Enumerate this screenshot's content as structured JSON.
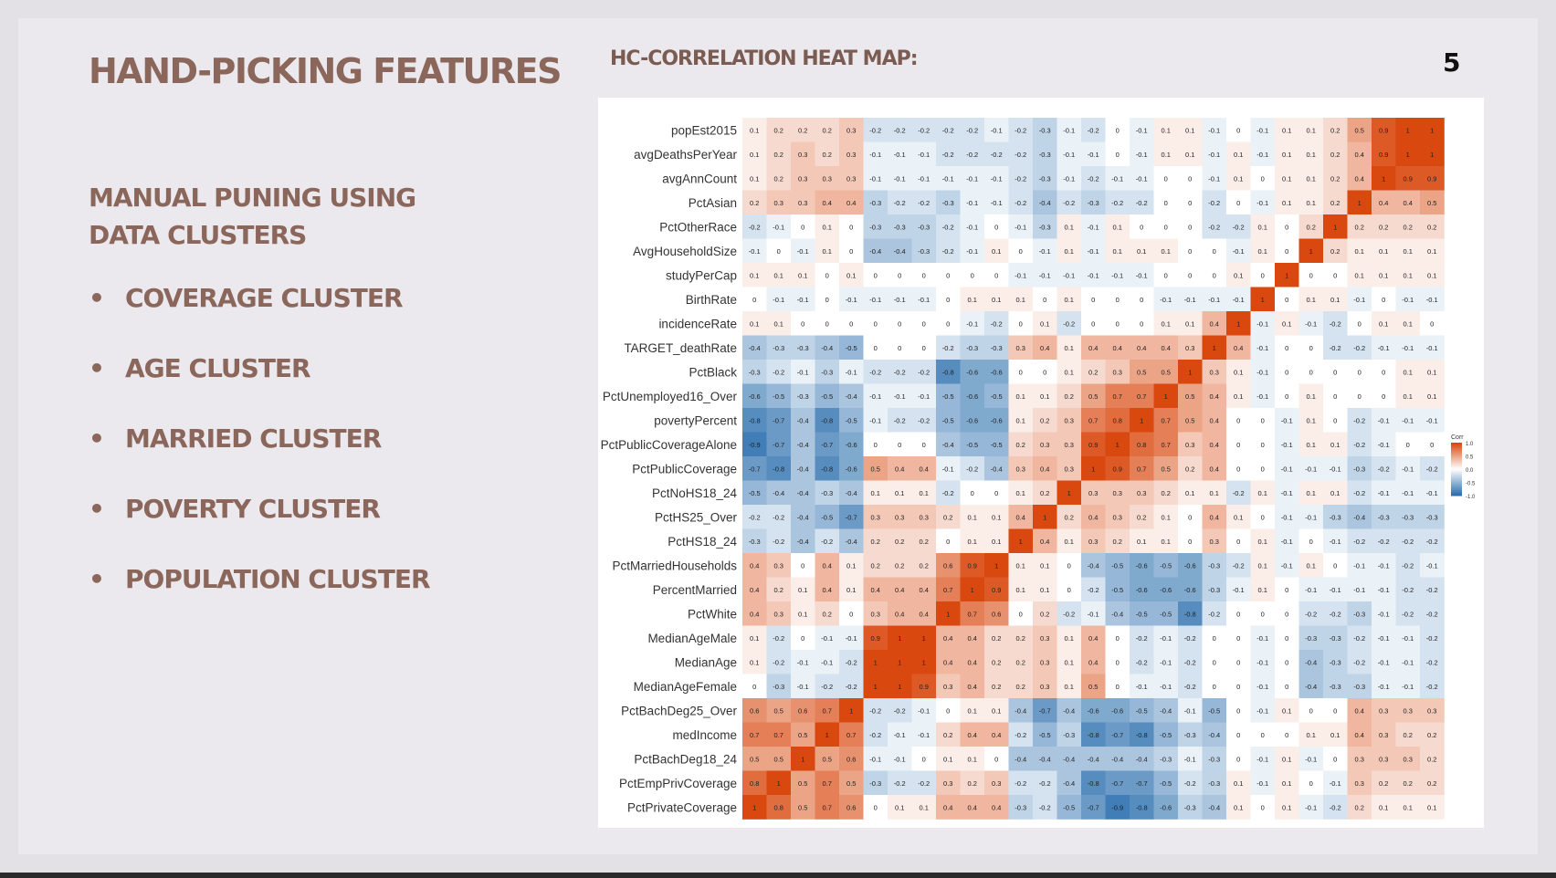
{
  "slide": {
    "title": "HAND-PICKING FEATURES",
    "heatmap_title": "HC-CORRELATION HEAT MAP:",
    "page_number": "5",
    "subtitle": "MANUAL PUNING USING DATA CLUSTERS",
    "bullet_char": "•",
    "clusters": [
      "COVERAGE CLUSTER",
      "AGE CLUSTER",
      "MARRIED CLUSTER",
      "POVERTY CLUSTER",
      "POPULATION CLUSTER"
    ]
  },
  "chart_data": {
    "type": "heatmap",
    "variables": [
      "popEst2015",
      "avgDeathsPerYear",
      "avgAnnCount",
      "PctAsian",
      "PctOtherRace",
      "AvgHouseholdSize",
      "studyPerCap",
      "BirthRate",
      "incidenceRate",
      "TARGET_deathRate",
      "PctBlack",
      "PctUnemployed16_Over",
      "povertyPercent",
      "PctPublicCoverageAlone",
      "PctPublicCoverage",
      "PctNoHS18_24",
      "PctHS25_Over",
      "PctHS18_24",
      "PctMarriedHouseholds",
      "PercentMarried",
      "PctWhite",
      "MedianAgeMale",
      "MedianAge",
      "MedianAgeFemale",
      "PctBachDeg25_Over",
      "medIncome",
      "PctBachDeg18_24",
      "PctEmpPrivCoverage",
      "PctPrivateCoverage"
    ],
    "values": [
      [
        0.1,
        0.2,
        0.2,
        0.2,
        0.3,
        -0.2,
        -0.2,
        -0.2,
        -0.2,
        -0.2,
        -0.1,
        -0.2,
        -0.3,
        -0.1,
        -0.2,
        0,
        -0.1,
        0.1,
        0.1,
        -0.1,
        0,
        -0.1,
        0.1,
        0.1,
        0.2,
        0.5,
        0.9,
        1,
        1
      ],
      [
        0.1,
        0.2,
        0.3,
        0.2,
        0.3,
        -0.1,
        -0.1,
        -0.1,
        -0.2,
        -0.2,
        -0.2,
        -0.2,
        -0.3,
        -0.1,
        -0.1,
        0,
        -0.1,
        0.1,
        0.1,
        -0.1,
        0.1,
        -0.1,
        0.1,
        0.1,
        0.2,
        0.4,
        0.9,
        1,
        1
      ],
      [
        0.1,
        0.2,
        0.3,
        0.3,
        0.3,
        -0.1,
        -0.1,
        -0.1,
        -0.1,
        -0.1,
        -0.1,
        -0.2,
        -0.3,
        -0.1,
        -0.2,
        -0.1,
        -0.1,
        0,
        0,
        -0.1,
        0.1,
        0,
        0.1,
        0.1,
        0.2,
        0.4,
        1,
        0.9,
        0.9
      ],
      [
        0.2,
        0.3,
        0.3,
        0.4,
        0.4,
        -0.3,
        -0.2,
        -0.2,
        -0.3,
        -0.1,
        -0.1,
        -0.2,
        -0.4,
        -0.2,
        -0.3,
        -0.2,
        -0.2,
        0,
        0,
        -0.2,
        0,
        -0.1,
        0.1,
        0.1,
        0.2,
        1,
        0.4,
        0.4,
        0.5
      ],
      [
        -0.2,
        -0.1,
        0,
        0.1,
        0,
        -0.3,
        -0.3,
        -0.3,
        -0.2,
        -0.1,
        0,
        -0.1,
        -0.3,
        0.1,
        -0.1,
        0.1,
        0,
        0,
        0,
        -0.2,
        -0.2,
        0.1,
        0,
        0.2,
        1,
        0.2,
        0.2,
        0.2,
        0.2
      ],
      [
        -0.1,
        0,
        -0.1,
        0.1,
        0,
        -0.4,
        -0.4,
        -0.3,
        -0.2,
        -0.1,
        0.1,
        0,
        -0.1,
        0.1,
        -0.1,
        0.1,
        0.1,
        0.1,
        0,
        0,
        -0.1,
        0.1,
        0,
        1,
        0.2,
        0.1,
        0.1,
        0.1,
        0.1
      ],
      [
        0.1,
        0.1,
        0.1,
        0,
        0.1,
        0,
        0,
        0,
        0,
        0,
        0,
        -0.1,
        -0.1,
        -0.1,
        -0.1,
        -0.1,
        -0.1,
        0,
        0,
        0,
        0.1,
        0,
        1,
        0,
        0,
        0.1,
        0.1,
        0.1,
        0.1
      ],
      [
        0,
        -0.1,
        -0.1,
        0,
        -0.1,
        -0.1,
        -0.1,
        -0.1,
        0,
        0.1,
        0.1,
        0.1,
        0,
        0.1,
        0,
        0,
        0,
        -0.1,
        -0.1,
        -0.1,
        -0.1,
        1,
        0,
        0.1,
        0.1,
        -0.1,
        0,
        -0.1,
        -0.1
      ],
      [
        0.1,
        0.1,
        0,
        0,
        0,
        0,
        0,
        0,
        0,
        -0.1,
        -0.2,
        0,
        0.1,
        -0.2,
        0,
        0,
        0,
        0.1,
        0.1,
        0.4,
        1,
        -0.1,
        0.1,
        -0.1,
        -0.2,
        0,
        0.1,
        0.1,
        0
      ],
      [
        -0.4,
        -0.3,
        -0.3,
        -0.4,
        -0.5,
        0,
        0,
        0,
        -0.2,
        -0.3,
        -0.3,
        0.3,
        0.4,
        0.1,
        0.4,
        0.4,
        0.4,
        0.4,
        0.3,
        1,
        0.4,
        -0.1,
        0,
        0,
        -0.2,
        -0.2,
        -0.1,
        -0.1,
        -0.1
      ],
      [
        -0.3,
        -0.2,
        -0.1,
        -0.3,
        -0.1,
        -0.2,
        -0.2,
        -0.2,
        -0.8,
        -0.6,
        -0.6,
        0,
        0,
        0.1,
        0.2,
        0.3,
        0.5,
        0.5,
        1,
        0.3,
        0.1,
        -0.1,
        0,
        0,
        0,
        0,
        0,
        0.1,
        0.1
      ],
      [
        -0.6,
        -0.5,
        -0.3,
        -0.5,
        -0.4,
        -0.1,
        -0.1,
        -0.1,
        -0.5,
        -0.6,
        -0.5,
        0.1,
        0.1,
        0.2,
        0.5,
        0.7,
        0.7,
        1,
        0.5,
        0.4,
        0.1,
        -0.1,
        0,
        0.1,
        0,
        0,
        0,
        0.1,
        0.1
      ],
      [
        -0.8,
        -0.7,
        -0.4,
        -0.8,
        -0.5,
        -0.1,
        -0.2,
        -0.2,
        -0.5,
        -0.6,
        -0.6,
        0.1,
        0.2,
        0.3,
        0.7,
        0.8,
        1,
        0.7,
        0.5,
        0.4,
        0,
        0,
        -0.1,
        0.1,
        0,
        -0.2,
        -0.1,
        -0.1,
        -0.1
      ],
      [
        -0.9,
        -0.7,
        -0.4,
        -0.7,
        -0.6,
        0,
        0,
        0,
        -0.4,
        -0.5,
        -0.5,
        0.2,
        0.3,
        0.3,
        0.9,
        1,
        0.8,
        0.7,
        0.3,
        0.4,
        0,
        0,
        -0.1,
        0.1,
        0.1,
        -0.2,
        -0.1,
        0,
        0
      ],
      [
        -0.7,
        -0.8,
        -0.4,
        -0.8,
        -0.6,
        0.5,
        0.4,
        0.4,
        -0.1,
        -0.2,
        -0.4,
        0.3,
        0.4,
        0.3,
        1,
        0.9,
        0.7,
        0.5,
        0.2,
        0.4,
        0,
        0,
        -0.1,
        -0.1,
        -0.1,
        -0.3,
        -0.2,
        -0.1,
        -0.2
      ],
      [
        -0.5,
        -0.4,
        -0.4,
        -0.3,
        -0.4,
        0.1,
        0.1,
        0.1,
        -0.2,
        0,
        0,
        0.1,
        0.2,
        1,
        0.3,
        0.3,
        0.3,
        0.2,
        0.1,
        0.1,
        -0.2,
        0.1,
        -0.1,
        0.1,
        0.1,
        -0.2,
        -0.1,
        -0.1,
        -0.1
      ],
      [
        -0.2,
        -0.2,
        -0.4,
        -0.5,
        -0.7,
        0.3,
        0.3,
        0.3,
        0.2,
        0.1,
        0.1,
        0.4,
        1,
        0.2,
        0.4,
        0.3,
        0.2,
        0.1,
        0,
        0.4,
        0.1,
        0,
        -0.1,
        -0.1,
        -0.3,
        -0.4,
        -0.3,
        -0.3,
        -0.3
      ],
      [
        -0.3,
        -0.2,
        -0.4,
        -0.2,
        -0.4,
        0.2,
        0.2,
        0.2,
        0,
        0.1,
        0.1,
        1,
        0.4,
        0.1,
        0.3,
        0.2,
        0.1,
        0.1,
        0,
        0.3,
        0,
        0.1,
        -0.1,
        0,
        -0.1,
        -0.2,
        -0.2,
        -0.2,
        -0.2
      ],
      [
        0.4,
        0.3,
        0,
        0.4,
        0.1,
        0.2,
        0.2,
        0.2,
        0.6,
        0.9,
        1,
        0.1,
        0.1,
        0,
        -0.4,
        -0.5,
        -0.6,
        -0.5,
        -0.6,
        -0.3,
        -0.2,
        0.1,
        -0.1,
        0.1,
        0,
        -0.1,
        -0.1,
        -0.2,
        -0.1
      ],
      [
        0.4,
        0.2,
        0.1,
        0.4,
        0.1,
        0.4,
        0.4,
        0.4,
        0.7,
        1,
        0.9,
        0.1,
        0.1,
        0,
        -0.2,
        -0.5,
        -0.6,
        -0.6,
        -0.6,
        -0.3,
        -0.1,
        0.1,
        0,
        -0.1,
        -0.1,
        -0.1,
        -0.1,
        -0.2,
        -0.2
      ],
      [
        0.4,
        0.3,
        0.1,
        0.2,
        0,
        0.3,
        0.4,
        0.4,
        1,
        0.7,
        0.6,
        0,
        0.2,
        -0.2,
        -0.1,
        -0.4,
        -0.5,
        -0.5,
        -0.8,
        -0.2,
        0,
        0,
        0,
        -0.2,
        -0.2,
        -0.3,
        -0.1,
        -0.2,
        -0.2
      ],
      [
        0.1,
        -0.2,
        0,
        -0.1,
        -0.1,
        0.9,
        1,
        1,
        0.4,
        0.4,
        0.2,
        0.2,
        0.3,
        0.1,
        0.4,
        0,
        -0.2,
        -0.1,
        -0.2,
        0,
        0,
        -0.1,
        0,
        -0.3,
        -0.3,
        -0.2,
        -0.1,
        -0.1,
        -0.2
      ],
      [
        0.1,
        -0.2,
        -0.1,
        -0.1,
        -0.2,
        1,
        1,
        1,
        0.4,
        0.4,
        0.2,
        0.2,
        0.3,
        0.1,
        0.4,
        0,
        -0.2,
        -0.1,
        -0.2,
        0,
        0,
        -0.1,
        0,
        -0.4,
        -0.3,
        -0.2,
        -0.1,
        -0.1,
        -0.2
      ],
      [
        0,
        -0.3,
        -0.1,
        -0.2,
        -0.2,
        1,
        1,
        0.9,
        0.3,
        0.4,
        0.2,
        0.2,
        0.3,
        0.1,
        0.5,
        0,
        -0.1,
        -0.1,
        -0.2,
        0,
        0,
        -0.1,
        0,
        -0.4,
        -0.3,
        -0.3,
        -0.1,
        -0.1,
        -0.2
      ],
      [
        0.6,
        0.5,
        0.6,
        0.7,
        1,
        -0.2,
        -0.2,
        -0.1,
        0,
        0.1,
        0.1,
        -0.4,
        -0.7,
        -0.4,
        -0.6,
        -0.6,
        -0.5,
        -0.4,
        -0.1,
        -0.5,
        0,
        -0.1,
        0.1,
        0,
        0,
        0.4,
        0.3,
        0.3,
        0.3
      ],
      [
        0.7,
        0.7,
        0.5,
        1,
        0.7,
        -0.2,
        -0.1,
        -0.1,
        0.2,
        0.4,
        0.4,
        -0.2,
        -0.5,
        -0.3,
        -0.8,
        -0.7,
        -0.8,
        -0.5,
        -0.3,
        -0.4,
        0,
        0,
        0,
        0.1,
        0.1,
        0.4,
        0.3,
        0.2,
        0.2
      ],
      [
        0.5,
        0.5,
        1,
        0.5,
        0.6,
        -0.1,
        -0.1,
        0,
        0.1,
        0.1,
        0,
        -0.4,
        -0.4,
        -0.4,
        -0.4,
        -0.4,
        -0.4,
        -0.3,
        -0.1,
        -0.3,
        0,
        -0.1,
        0.1,
        -0.1,
        0,
        0.3,
        0.3,
        0.3,
        0.2
      ],
      [
        0.8,
        1,
        0.5,
        0.7,
        0.5,
        -0.3,
        -0.2,
        -0.2,
        0.3,
        0.2,
        0.3,
        -0.2,
        -0.2,
        -0.4,
        -0.8,
        -0.7,
        -0.7,
        -0.5,
        -0.2,
        -0.3,
        0.1,
        -0.1,
        0.1,
        0,
        -0.1,
        0.3,
        0.2,
        0.2,
        0.2
      ],
      [
        1,
        0.8,
        0.5,
        0.7,
        0.6,
        0,
        0.1,
        0.1,
        0.4,
        0.4,
        0.4,
        -0.3,
        -0.2,
        -0.5,
        -0.7,
        -0.9,
        -0.8,
        -0.6,
        -0.3,
        -0.4,
        0.1,
        0,
        0.1,
        -0.1,
        -0.2,
        0.2,
        0.1,
        0.1,
        0.1
      ]
    ],
    "colors": {
      "negative": "#2c6fae",
      "zero": "#ffffff",
      "positive": "#d9480f"
    },
    "legend": {
      "title": "Corr",
      "ticks": [
        "1.0",
        "0.5",
        "0.0",
        "-0.5",
        "-1.0"
      ],
      "placement": "right"
    }
  }
}
